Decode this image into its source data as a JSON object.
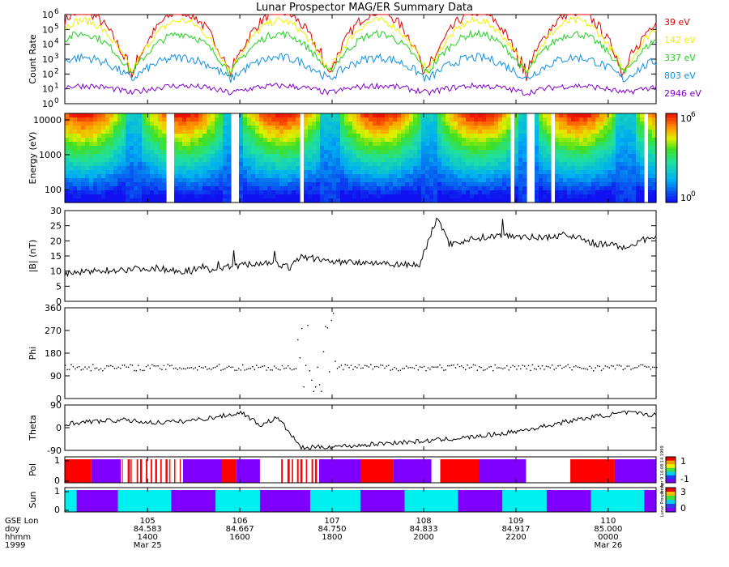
{
  "title": "Lunar Prospector MAG/ER Summary Data",
  "colors": {
    "e39": "#e00000",
    "e142": "#f0f000",
    "e337": "#20d020",
    "e803": "#1090e0",
    "e2946": "#8000c8",
    "pol_pos": "#ff0000",
    "pol_neg": "#8000ff",
    "sun_lit": "#00f0f0",
    "sun_dark": "#8000ff"
  },
  "chart_data": [
    {
      "panel": "count-rate",
      "type": "line",
      "ylabel": "Count Rate",
      "yscale": "log",
      "ylim": [
        1,
        1000000
      ],
      "ytick_exponents": [
        "0",
        "1",
        "2",
        "3",
        "4",
        "5",
        "6"
      ],
      "series": [
        {
          "name": "39 eV",
          "color": "#e00000"
        },
        {
          "name": "142 eV",
          "color": "#f0f000"
        },
        {
          "name": "337 eV",
          "color": "#20d020"
        },
        {
          "name": "803 eV",
          "color": "#1090e0"
        },
        {
          "name": "2946 eV",
          "color": "#8000c8"
        }
      ],
      "orbit_count": 6
    },
    {
      "panel": "energy-spectrogram",
      "type": "heatmap",
      "ylabel": "Energy (eV)",
      "yscale": "log",
      "yticks": [
        "10000",
        "1000",
        "100"
      ],
      "colorbar_max": "10",
      "colorbar_max_exp": "6",
      "colorbar_min": "10",
      "colorbar_min_exp": "0"
    },
    {
      "panel": "field-magnitude",
      "type": "line",
      "ylabel": "|B| (nT)",
      "ylim": [
        0,
        30
      ],
      "yticks": [
        "0",
        "5",
        "10",
        "15",
        "20",
        "25",
        "30"
      ],
      "x": [
        0,
        0.05,
        0.1,
        0.15,
        0.2,
        0.23,
        0.25,
        0.3,
        0.35,
        0.38,
        0.4,
        0.45,
        0.5,
        0.55,
        0.6,
        0.63,
        0.65,
        0.7,
        0.75,
        0.8,
        0.85,
        0.9,
        0.95,
        1.0
      ],
      "values": [
        9,
        10,
        10.5,
        11,
        10,
        11,
        10.5,
        12,
        13,
        11,
        15,
        13,
        13,
        12.5,
        12,
        28,
        19,
        21,
        22,
        21,
        22,
        19,
        18,
        22
      ]
    },
    {
      "panel": "phi",
      "type": "scatter",
      "ylabel": "Phi",
      "ylim": [
        0,
        360
      ],
      "yticks": [
        "0",
        "90",
        "180",
        "270",
        "360"
      ],
      "baseline_value": 125
    },
    {
      "panel": "theta",
      "type": "line",
      "ylabel": "Theta",
      "ylim": [
        -90,
        90
      ],
      "yticks": [
        "-90",
        "0",
        "90"
      ],
      "x": [
        0,
        0.05,
        0.1,
        0.15,
        0.2,
        0.25,
        0.3,
        0.33,
        0.36,
        0.4,
        0.45,
        0.5,
        0.55,
        0.6,
        0.65,
        0.7,
        0.75,
        0.8,
        0.85,
        0.9,
        0.95,
        1.0
      ],
      "values": [
        15,
        25,
        30,
        20,
        25,
        40,
        60,
        10,
        40,
        -80,
        -75,
        -70,
        -60,
        -55,
        -45,
        -35,
        -20,
        0,
        25,
        45,
        60,
        50
      ]
    },
    {
      "panel": "polarity",
      "type": "bar",
      "ylabel": "Pol",
      "yticks": [
        "0",
        "1"
      ],
      "colorbar_labels": [
        "1",
        "-1"
      ],
      "side_text": "Fri Apr 9 16:08:14 1999",
      "segments": [
        {
          "start": 0.0,
          "end": 0.045,
          "state": "pos"
        },
        {
          "start": 0.045,
          "end": 0.095,
          "state": "neg"
        },
        {
          "start": 0.095,
          "end": 0.2,
          "state": "pos-gaps"
        },
        {
          "start": 0.2,
          "end": 0.265,
          "state": "neg"
        },
        {
          "start": 0.265,
          "end": 0.29,
          "state": "pos"
        },
        {
          "start": 0.29,
          "end": 0.33,
          "state": "neg"
        },
        {
          "start": 0.33,
          "end": 0.365,
          "state": "none"
        },
        {
          "start": 0.365,
          "end": 0.43,
          "state": "pos-gaps"
        },
        {
          "start": 0.43,
          "end": 0.5,
          "state": "neg"
        },
        {
          "start": 0.5,
          "end": 0.555,
          "state": "pos"
        },
        {
          "start": 0.555,
          "end": 0.62,
          "state": "neg"
        },
        {
          "start": 0.62,
          "end": 0.635,
          "state": "none"
        },
        {
          "start": 0.635,
          "end": 0.7,
          "state": "pos"
        },
        {
          "start": 0.7,
          "end": 0.78,
          "state": "neg"
        },
        {
          "start": 0.78,
          "end": 0.855,
          "state": "none"
        },
        {
          "start": 0.855,
          "end": 0.93,
          "state": "pos"
        },
        {
          "start": 0.93,
          "end": 1.0,
          "state": "neg"
        }
      ]
    },
    {
      "panel": "sun",
      "type": "bar",
      "ylabel": "Sun",
      "yticks": [
        "0",
        "1"
      ],
      "colorbar_labels": [
        "3",
        "0"
      ],
      "side_text": "Lunar Prospector",
      "segments": [
        {
          "start": 0.0,
          "end": 0.02,
          "state": "lit"
        },
        {
          "start": 0.02,
          "end": 0.09,
          "state": "dark"
        },
        {
          "start": 0.09,
          "end": 0.18,
          "state": "lit"
        },
        {
          "start": 0.18,
          "end": 0.255,
          "state": "dark"
        },
        {
          "start": 0.255,
          "end": 0.33,
          "state": "lit"
        },
        {
          "start": 0.33,
          "end": 0.415,
          "state": "dark"
        },
        {
          "start": 0.415,
          "end": 0.5,
          "state": "lit"
        },
        {
          "start": 0.5,
          "end": 0.575,
          "state": "dark"
        },
        {
          "start": 0.575,
          "end": 0.665,
          "state": "lit"
        },
        {
          "start": 0.665,
          "end": 0.74,
          "state": "dark"
        },
        {
          "start": 0.74,
          "end": 0.815,
          "state": "lit"
        },
        {
          "start": 0.815,
          "end": 0.89,
          "state": "dark"
        },
        {
          "start": 0.89,
          "end": 0.98,
          "state": "lit"
        },
        {
          "start": 0.98,
          "end": 1.0,
          "state": "dark"
        }
      ]
    }
  ],
  "x_axis": {
    "row_labels": [
      "GSE Lon",
      "doy",
      "hhmm",
      "1999"
    ],
    "ticks": [
      {
        "lon": "105",
        "doy": "84.583",
        "hhmm": "1400",
        "date": "Mar 25"
      },
      {
        "lon": "106",
        "doy": "84.667",
        "hhmm": "1600",
        "date": ""
      },
      {
        "lon": "107",
        "doy": "84.750",
        "hhmm": "1800",
        "date": ""
      },
      {
        "lon": "108",
        "doy": "84.833",
        "hhmm": "2000",
        "date": ""
      },
      {
        "lon": "109",
        "doy": "84.917",
        "hhmm": "2200",
        "date": ""
      },
      {
        "lon": "110",
        "doy": "85.000",
        "hhmm": "0000",
        "date": "Mar 26"
      }
    ]
  }
}
